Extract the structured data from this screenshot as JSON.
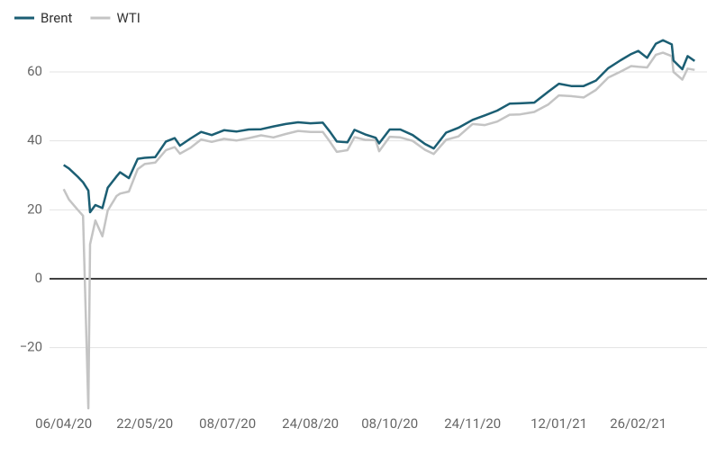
{
  "chart_data": {
    "type": "line",
    "x": [
      "06/04/20",
      "09/04/20",
      "14/04/20",
      "17/04/20",
      "20/04/20",
      "21/04/20",
      "24/04/20",
      "28/04/20",
      "01/05/20",
      "06/05/20",
      "08/05/20",
      "13/05/20",
      "18/05/20",
      "22/05/20",
      "28/05/20",
      "03/06/20",
      "08/06/20",
      "11/06/20",
      "17/06/20",
      "23/06/20",
      "29/06/20",
      "06/07/20",
      "13/07/20",
      "20/07/20",
      "27/07/20",
      "03/08/20",
      "10/08/20",
      "17/08/20",
      "24/08/20",
      "31/08/20",
      "04/09/20",
      "08/09/20",
      "14/09/20",
      "18/09/20",
      "24/09/20",
      "30/09/20",
      "02/10/20",
      "08/10/20",
      "14/10/20",
      "21/10/20",
      "28/10/20",
      "02/11/20",
      "09/11/20",
      "16/11/20",
      "24/11/20",
      "01/12/20",
      "08/12/20",
      "15/12/20",
      "21/12/20",
      "29/12/20",
      "06/01/21",
      "12/01/21",
      "19/01/21",
      "26/01/21",
      "02/02/21",
      "09/02/21",
      "16/02/21",
      "22/02/21",
      "26/02/21",
      "03/03/21",
      "08/03/21",
      "12/03/21",
      "17/03/21",
      "18/03/21",
      "23/03/21",
      "26/03/21",
      "30/03/21"
    ],
    "series": [
      {
        "name": "Brent",
        "color": "#1b5e73",
        "values": [
          33,
          32,
          29.6,
          28,
          25.6,
          19.3,
          21.4,
          20.5,
          26.4,
          29.7,
          30.9,
          29.2,
          34.8,
          35.1,
          35.3,
          39.8,
          40.8,
          38.6,
          40.7,
          42.6,
          41.7,
          43.1,
          42.7,
          43.3,
          43.4,
          44.2,
          44.9,
          45.4,
          45.1,
          45.3,
          42.7,
          39.8,
          39.6,
          43.2,
          41.9,
          40.9,
          39.3,
          43.3,
          43.3,
          41.7,
          39.1,
          37.8,
          42.4,
          43.8,
          46.1,
          47.4,
          48.8,
          50.8,
          50.9,
          51.1,
          54.3,
          56.6,
          55.9,
          55.9,
          57.5,
          61.1,
          63.4,
          65.2,
          66.1,
          64.1,
          68.2,
          69.2,
          68,
          63.3,
          60.8,
          64.6,
          63.2
        ]
      },
      {
        "name": "WTI",
        "color": "#c4c4c4",
        "values": [
          26,
          23,
          20,
          18.3,
          -37.6,
          10,
          16.9,
          12.3,
          19.8,
          24,
          24.7,
          25.3,
          31.8,
          33.3,
          33.7,
          37.3,
          38.2,
          36.3,
          38,
          40.4,
          39.7,
          40.6,
          40.1,
          40.8,
          41.6,
          41,
          42,
          42.9,
          42.6,
          42.6,
          39.8,
          36.8,
          37.3,
          41.1,
          40.3,
          40.2,
          37,
          41.2,
          41,
          40,
          37.4,
          36.2,
          40.3,
          41.3,
          44.9,
          44.6,
          45.6,
          47.6,
          47.7,
          48.4,
          50.6,
          53.2,
          52.98,
          52.6,
          54.8,
          58.4,
          60.1,
          61.7,
          61.5,
          61.3,
          65,
          65.6,
          64.6,
          60,
          57.8,
          60.97,
          60.6
        ]
      }
    ],
    "xlim": [
      "29/03/20",
      "06/04/21"
    ],
    "xticks": [
      "06/04/20",
      "22/05/20",
      "08/07/20",
      "24/08/20",
      "08/10/20",
      "24/11/20",
      "12/01/21",
      "26/02/21"
    ],
    "ylim": [
      -40,
      70
    ],
    "yticks": [
      {
        "value": -20,
        "label": "−20"
      },
      0,
      20,
      40,
      60
    ],
    "grid": true,
    "legend": "top-left"
  }
}
